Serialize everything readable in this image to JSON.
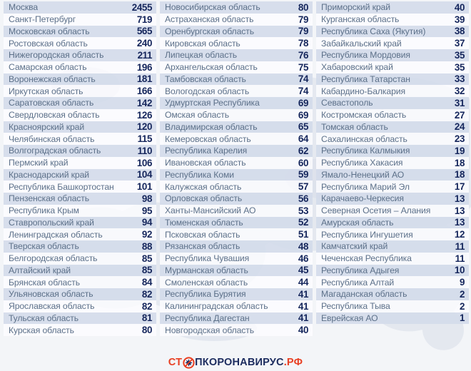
{
  "table": {
    "columns": [
      {
        "rows": [
          {
            "region": "Москва",
            "value": "2455"
          },
          {
            "region": "Санкт-Петербург",
            "value": "719"
          },
          {
            "region": "Московская область",
            "value": "565"
          },
          {
            "region": "Ростовская область",
            "value": "240"
          },
          {
            "region": "Нижегородская область",
            "value": "211"
          },
          {
            "region": "Самарская область",
            "value": "196"
          },
          {
            "region": "Воронежская область",
            "value": "181"
          },
          {
            "region": "Иркутская область",
            "value": "166"
          },
          {
            "region": "Саратовская область",
            "value": "142"
          },
          {
            "region": "Свердловская область",
            "value": "126"
          },
          {
            "region": "Красноярский край",
            "value": "120"
          },
          {
            "region": "Челябинская область",
            "value": "115"
          },
          {
            "region": "Волгоградская область",
            "value": "110"
          },
          {
            "region": "Пермский край",
            "value": "106"
          },
          {
            "region": "Краснодарский край",
            "value": "104"
          },
          {
            "region": "Республика Башкортостан",
            "value": "101"
          },
          {
            "region": "Пензенская область",
            "value": "98"
          },
          {
            "region": "Республика Крым",
            "value": "95"
          },
          {
            "region": "Ставропольский край",
            "value": "94"
          },
          {
            "region": "Ленинградская область",
            "value": "92"
          },
          {
            "region": "Тверская область",
            "value": "88"
          },
          {
            "region": "Белгородская область",
            "value": "85"
          },
          {
            "region": "Алтайский край",
            "value": "85"
          },
          {
            "region": "Брянская область",
            "value": "84"
          },
          {
            "region": "Ульяновская область",
            "value": "82"
          },
          {
            "region": "Ярославская область",
            "value": "82"
          },
          {
            "region": "Тульская область",
            "value": "81"
          },
          {
            "region": "Курская область",
            "value": "80"
          }
        ]
      },
      {
        "rows": [
          {
            "region": "Новосибирская область",
            "value": "80"
          },
          {
            "region": "Астраханская область",
            "value": "79"
          },
          {
            "region": "Оренбургская область",
            "value": "79"
          },
          {
            "region": "Кировская область",
            "value": "78"
          },
          {
            "region": "Липецкая область",
            "value": "76"
          },
          {
            "region": "Архангельская область",
            "value": "75"
          },
          {
            "region": "Тамбовская область",
            "value": "74"
          },
          {
            "region": "Вологодская область",
            "value": "74"
          },
          {
            "region": "Удмуртская Республика",
            "value": "69"
          },
          {
            "region": "Омская область",
            "value": "69"
          },
          {
            "region": "Владимирская область",
            "value": "65"
          },
          {
            "region": "Кемеровская область",
            "value": "64"
          },
          {
            "region": "Республика Карелия",
            "value": "62"
          },
          {
            "region": "Ивановская область",
            "value": "60"
          },
          {
            "region": "Республика Коми",
            "value": "59"
          },
          {
            "region": "Калужская область",
            "value": "57"
          },
          {
            "region": "Орловская область",
            "value": "56"
          },
          {
            "region": "Ханты-Мансийский АО",
            "value": "53"
          },
          {
            "region": "Тюменская область",
            "value": "52"
          },
          {
            "region": "Псковская область",
            "value": "51"
          },
          {
            "region": "Рязанская область",
            "value": "48"
          },
          {
            "region": "Республика Чувашия",
            "value": "46"
          },
          {
            "region": "Мурманская область",
            "value": "45"
          },
          {
            "region": "Смоленская область",
            "value": "44"
          },
          {
            "region": "Республика Бурятия",
            "value": "41"
          },
          {
            "region": "Калининградская область",
            "value": "41"
          },
          {
            "region": "Республика Дагестан",
            "value": "41"
          },
          {
            "region": "Новгородская область",
            "value": "40"
          }
        ]
      },
      {
        "rows": [
          {
            "region": "Приморский край",
            "value": "40"
          },
          {
            "region": "Курганская область",
            "value": "39"
          },
          {
            "region": "Республика Саха (Якутия)",
            "value": "38"
          },
          {
            "region": "Забайкальский край",
            "value": "37"
          },
          {
            "region": "Республика Мордовия",
            "value": "35"
          },
          {
            "region": "Хабаровский край",
            "value": "35"
          },
          {
            "region": "Республика Татарстан",
            "value": "33"
          },
          {
            "region": "Кабардино-Балкария",
            "value": "32"
          },
          {
            "region": "Севастополь",
            "value": "31"
          },
          {
            "region": "Костромская область",
            "value": "27"
          },
          {
            "region": "Томская область",
            "value": "24"
          },
          {
            "region": "Сахалинская область",
            "value": "23"
          },
          {
            "region": "Республика Калмыкия",
            "value": "19"
          },
          {
            "region": "Республика Хакасия",
            "value": "18"
          },
          {
            "region": "Ямало-Ненецкий АО",
            "value": "18"
          },
          {
            "region": "Республика Марий Эл",
            "value": "17"
          },
          {
            "region": "Карачаево-Черкесия",
            "value": "13"
          },
          {
            "region": "Северная Осетия – Алания",
            "value": "13"
          },
          {
            "region": "Амурская область",
            "value": "13"
          },
          {
            "region": "Республика Ингушетия",
            "value": "12"
          },
          {
            "region": "Камчатский край",
            "value": "11"
          },
          {
            "region": "Чеченская Республика",
            "value": "11"
          },
          {
            "region": "Республика Адыгея",
            "value": "10"
          },
          {
            "region": "Республика Алтай",
            "value": "9"
          },
          {
            "region": "Магаданская область",
            "value": "2"
          },
          {
            "region": "Республика Тыва",
            "value": "2"
          },
          {
            "region": "Еврейская АО",
            "value": "1"
          }
        ]
      }
    ]
  },
  "footer": {
    "logo": {
      "prefix": "СТ",
      "icon": "no-virus-icon",
      "middle": "ПКОРОНАВИРУС",
      "suffix": ".РФ"
    }
  },
  "colors": {
    "row_band": "#d4dceb",
    "row_alt": "#fcfdff",
    "region_text": "#5c7089",
    "value_text": "#15265c",
    "logo_red": "#e83f22",
    "logo_navy": "#1b2b5e",
    "background": "#f3f5f8",
    "map_fill": "#e3e7ee"
  }
}
